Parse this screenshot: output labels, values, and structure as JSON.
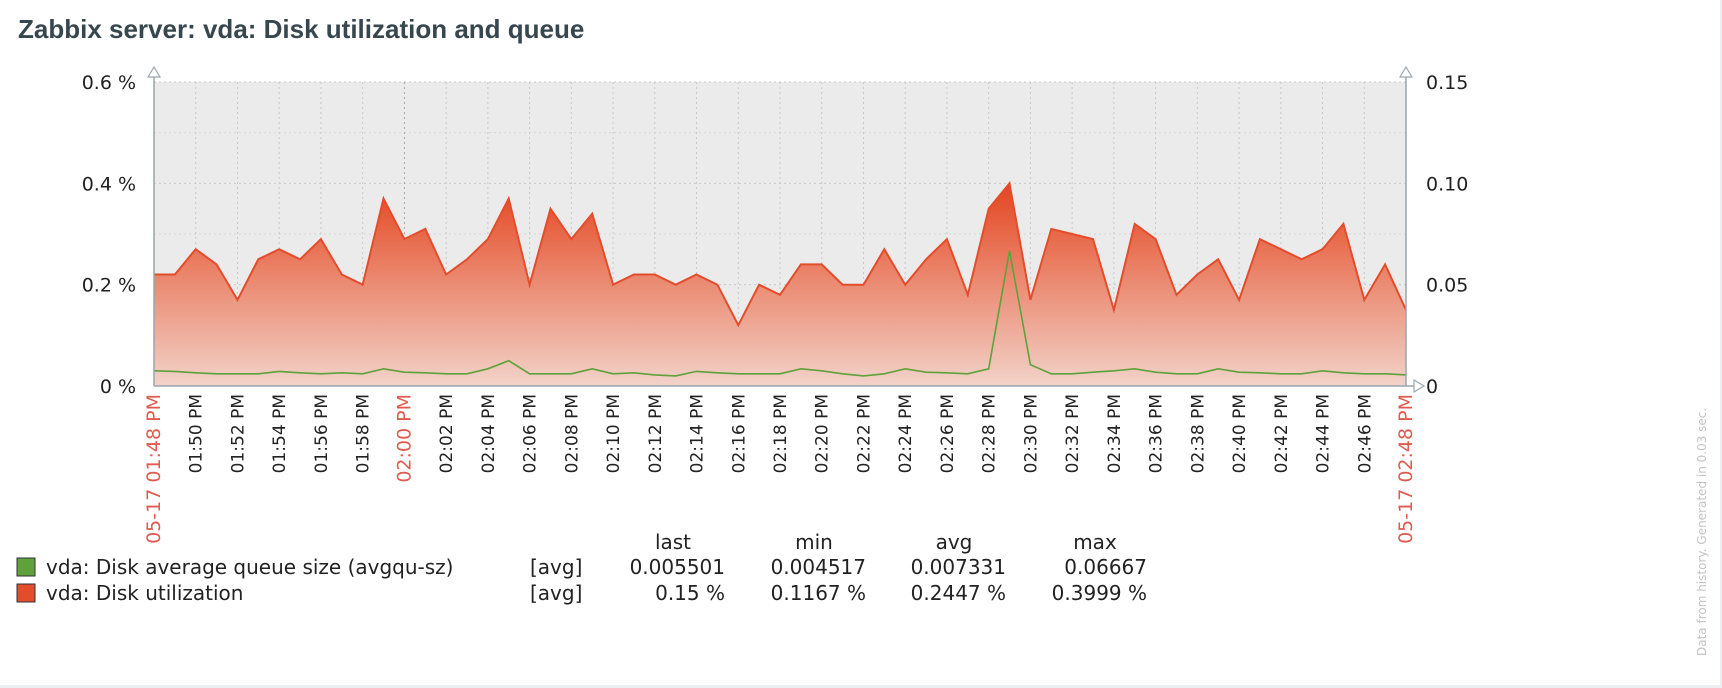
{
  "widget": {
    "title": "Zabbix server: vda: Disk utilization and queue"
  },
  "footer_note": "Data from history. Generated in 0.03 sec.",
  "colors": {
    "utilization": "#e24d2c",
    "queue": "#5fa13a",
    "plot_bg": "#ebebeb",
    "highlight_label": "#e05a4f",
    "axis": "#222222"
  },
  "chart_data": {
    "type": "area",
    "x_unit": "minutes",
    "x_start_label": "05-17 01:48 PM",
    "x_end_label": "05-17 02:48 PM",
    "x_ticks": [
      {
        "t": 2,
        "label": "01:50 PM"
      },
      {
        "t": 4,
        "label": "01:52 PM"
      },
      {
        "t": 6,
        "label": "01:54 PM"
      },
      {
        "t": 8,
        "label": "01:56 PM"
      },
      {
        "t": 10,
        "label": "01:58 PM"
      },
      {
        "t": 12,
        "label": "02:00 PM",
        "highlight": true
      },
      {
        "t": 14,
        "label": "02:02 PM"
      },
      {
        "t": 16,
        "label": "02:04 PM"
      },
      {
        "t": 18,
        "label": "02:06 PM"
      },
      {
        "t": 20,
        "label": "02:08 PM"
      },
      {
        "t": 22,
        "label": "02:10 PM"
      },
      {
        "t": 24,
        "label": "02:12 PM"
      },
      {
        "t": 26,
        "label": "02:14 PM"
      },
      {
        "t": 28,
        "label": "02:16 PM"
      },
      {
        "t": 30,
        "label": "02:18 PM"
      },
      {
        "t": 32,
        "label": "02:20 PM"
      },
      {
        "t": 34,
        "label": "02:22 PM"
      },
      {
        "t": 36,
        "label": "02:24 PM"
      },
      {
        "t": 38,
        "label": "02:26 PM"
      },
      {
        "t": 40,
        "label": "02:28 PM"
      },
      {
        "t": 42,
        "label": "02:30 PM"
      },
      {
        "t": 44,
        "label": "02:32 PM"
      },
      {
        "t": 46,
        "label": "02:34 PM"
      },
      {
        "t": 48,
        "label": "02:36 PM"
      },
      {
        "t": 50,
        "label": "02:38 PM"
      },
      {
        "t": 52,
        "label": "02:40 PM"
      },
      {
        "t": 54,
        "label": "02:42 PM"
      },
      {
        "t": 56,
        "label": "02:44 PM"
      },
      {
        "t": 58,
        "label": "02:46 PM"
      }
    ],
    "y_left": {
      "min": 0,
      "max": 0.6,
      "ticks": [
        0,
        0.2,
        0.4,
        0.6
      ],
      "labels": [
        "0 %",
        "0.2 %",
        "0.4 %",
        "0.6 %"
      ]
    },
    "y_right": {
      "min": 0,
      "max": 0.15,
      "ticks": [
        0,
        0.05,
        0.1,
        0.15
      ],
      "labels": [
        "0",
        "0.05",
        "0.10",
        "0.15"
      ]
    },
    "grid": true,
    "series": [
      {
        "name": "vda: Disk utilization",
        "axis": "left",
        "style": "filled-gradient",
        "color": "#e24d2c",
        "points": [
          [
            0,
            0.22
          ],
          [
            1,
            0.22
          ],
          [
            2,
            0.27
          ],
          [
            3,
            0.24
          ],
          [
            4,
            0.17
          ],
          [
            5,
            0.25
          ],
          [
            6,
            0.27
          ],
          [
            7,
            0.25
          ],
          [
            8,
            0.29
          ],
          [
            9,
            0.22
          ],
          [
            10,
            0.2
          ],
          [
            11,
            0.37
          ],
          [
            12,
            0.29
          ],
          [
            13,
            0.31
          ],
          [
            14,
            0.22
          ],
          [
            15,
            0.25
          ],
          [
            16,
            0.29
          ],
          [
            17,
            0.37
          ],
          [
            18,
            0.2
          ],
          [
            19,
            0.35
          ],
          [
            20,
            0.29
          ],
          [
            21,
            0.34
          ],
          [
            22,
            0.2
          ],
          [
            23,
            0.22
          ],
          [
            24,
            0.22
          ],
          [
            25,
            0.2
          ],
          [
            26,
            0.22
          ],
          [
            27,
            0.2
          ],
          [
            28,
            0.12
          ],
          [
            29,
            0.2
          ],
          [
            30,
            0.18
          ],
          [
            31,
            0.24
          ],
          [
            32,
            0.24
          ],
          [
            33,
            0.2
          ],
          [
            34,
            0.2
          ],
          [
            35,
            0.27
          ],
          [
            36,
            0.2
          ],
          [
            37,
            0.25
          ],
          [
            38,
            0.29
          ],
          [
            39,
            0.18
          ],
          [
            40,
            0.35
          ],
          [
            41,
            0.4
          ],
          [
            42,
            0.17
          ],
          [
            43,
            0.31
          ],
          [
            44,
            0.3
          ],
          [
            45,
            0.29
          ],
          [
            46,
            0.15
          ],
          [
            47,
            0.32
          ],
          [
            48,
            0.29
          ],
          [
            49,
            0.18
          ],
          [
            50,
            0.22
          ],
          [
            51,
            0.25
          ],
          [
            52,
            0.17
          ],
          [
            53,
            0.29
          ],
          [
            54,
            0.27
          ],
          [
            55,
            0.25
          ],
          [
            56,
            0.27
          ],
          [
            57,
            0.32
          ],
          [
            58,
            0.17
          ],
          [
            59,
            0.24
          ],
          [
            60,
            0.15
          ]
        ]
      },
      {
        "name": "vda: Disk average queue size (avgqu-sz)",
        "axis": "right",
        "style": "line",
        "color": "#5fa13a",
        "points": [
          [
            0,
            0.0075
          ],
          [
            1,
            0.0072
          ],
          [
            2,
            0.0065
          ],
          [
            3,
            0.006
          ],
          [
            4,
            0.006
          ],
          [
            5,
            0.006
          ],
          [
            6,
            0.0072
          ],
          [
            7,
            0.0065
          ],
          [
            8,
            0.006
          ],
          [
            9,
            0.0065
          ],
          [
            10,
            0.006
          ],
          [
            11,
            0.0085
          ],
          [
            12,
            0.0068
          ],
          [
            13,
            0.0065
          ],
          [
            14,
            0.006
          ],
          [
            15,
            0.006
          ],
          [
            16,
            0.0085
          ],
          [
            17,
            0.0125
          ],
          [
            18,
            0.006
          ],
          [
            19,
            0.006
          ],
          [
            20,
            0.006
          ],
          [
            21,
            0.0085
          ],
          [
            22,
            0.006
          ],
          [
            23,
            0.0065
          ],
          [
            24,
            0.0055
          ],
          [
            25,
            0.005
          ],
          [
            26,
            0.0072
          ],
          [
            27,
            0.0065
          ],
          [
            28,
            0.006
          ],
          [
            29,
            0.006
          ],
          [
            30,
            0.006
          ],
          [
            31,
            0.0085
          ],
          [
            32,
            0.0075
          ],
          [
            33,
            0.006
          ],
          [
            34,
            0.005
          ],
          [
            35,
            0.006
          ],
          [
            36,
            0.0085
          ],
          [
            37,
            0.0068
          ],
          [
            38,
            0.0065
          ],
          [
            39,
            0.006
          ],
          [
            40,
            0.0085
          ],
          [
            41,
            0.0667
          ],
          [
            42,
            0.0105
          ],
          [
            43,
            0.006
          ],
          [
            44,
            0.006
          ],
          [
            45,
            0.0068
          ],
          [
            46,
            0.0075
          ],
          [
            47,
            0.0085
          ],
          [
            48,
            0.0068
          ],
          [
            49,
            0.006
          ],
          [
            50,
            0.006
          ],
          [
            51,
            0.0085
          ],
          [
            52,
            0.0068
          ],
          [
            53,
            0.0065
          ],
          [
            54,
            0.006
          ],
          [
            55,
            0.006
          ],
          [
            56,
            0.0075
          ],
          [
            57,
            0.0065
          ],
          [
            58,
            0.006
          ],
          [
            59,
            0.006
          ],
          [
            60,
            0.0055
          ]
        ]
      }
    ],
    "legend": {
      "headers": [
        "last",
        "min",
        "avg",
        "max"
      ],
      "rows": [
        {
          "name": "vda: Disk average queue size (avgqu-sz)",
          "func": "[avg]",
          "color": "#5fa13a",
          "values": [
            "0.005501",
            "0.004517",
            "0.007331",
            "0.06667"
          ]
        },
        {
          "name": "vda: Disk utilization",
          "func": "[avg]",
          "color": "#e24d2c",
          "values": [
            "0.15 %",
            "0.1167 %",
            "0.2447 %",
            "0.3999 %"
          ]
        }
      ]
    }
  }
}
